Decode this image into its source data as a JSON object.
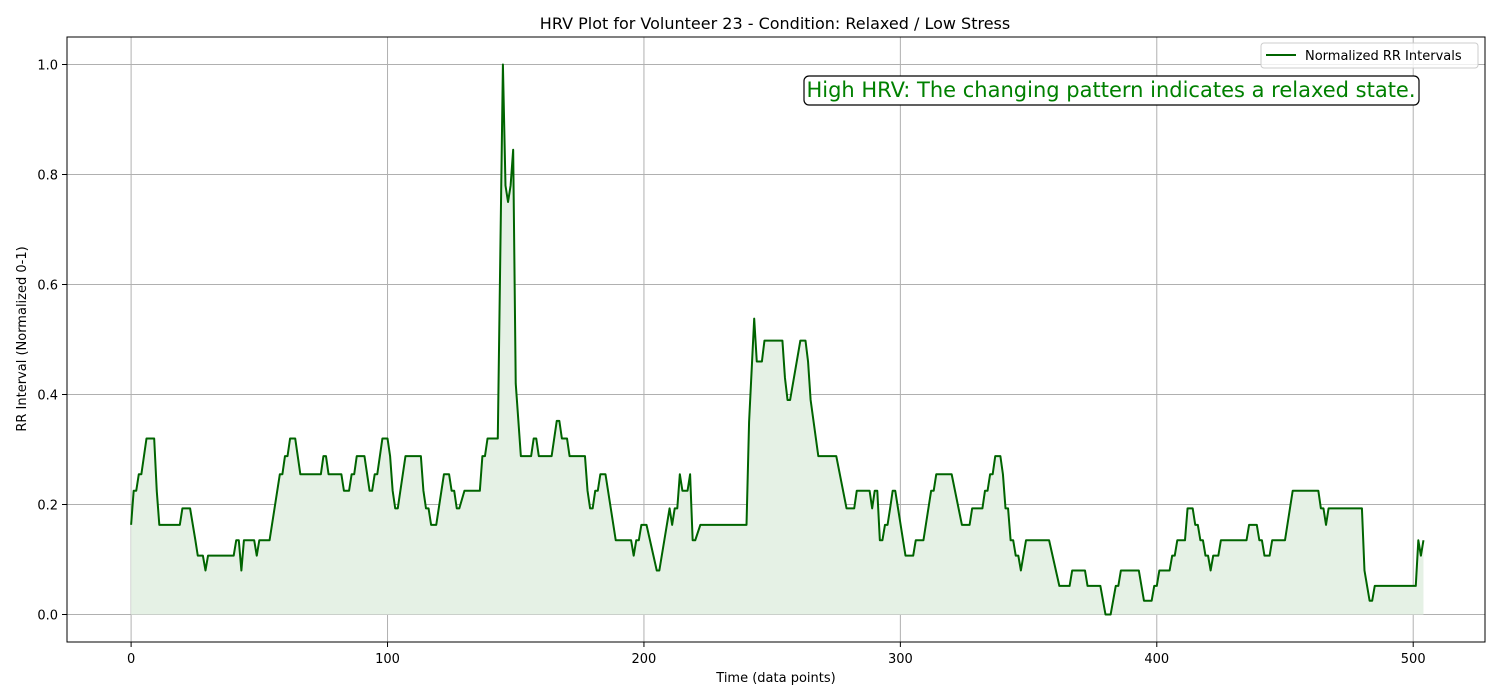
{
  "chart_data": {
    "type": "line",
    "title": "HRV Plot for Volunteer 23 - Condition: Relaxed / Low Stress",
    "xlabel": "Time (data points)",
    "ylabel": "RR Interval (Normalized 0-1)",
    "xlim": [
      -25,
      528
    ],
    "ylim": [
      -0.05,
      1.05
    ],
    "xticks": [
      0,
      100,
      200,
      300,
      400,
      500
    ],
    "yticks": [
      0.0,
      0.2,
      0.4,
      0.6,
      0.8,
      1.0
    ],
    "xtick_labels": [
      "0",
      "100",
      "200",
      "300",
      "400",
      "500"
    ],
    "ytick_labels": [
      "0.0",
      "0.2",
      "0.4",
      "0.6",
      "0.8",
      "1.0"
    ],
    "grid": true,
    "legend_position": "top-right",
    "line_color": "#006400",
    "fill_color": "#e5f1e5",
    "series": [
      {
        "name": "Normalized RR Intervals",
        "points": [
          [
            0,
            0.163
          ],
          [
            1,
            0.225
          ],
          [
            2,
            0.225
          ],
          [
            3,
            0.255
          ],
          [
            4,
            0.255
          ],
          [
            6,
            0.32
          ],
          [
            9,
            0.32
          ],
          [
            10,
            0.225
          ],
          [
            11,
            0.163
          ],
          [
            19,
            0.163
          ],
          [
            20,
            0.193
          ],
          [
            23,
            0.193
          ],
          [
            25,
            0.137
          ],
          [
            26,
            0.107
          ],
          [
            28,
            0.107
          ],
          [
            29,
            0.08
          ],
          [
            30,
            0.107
          ],
          [
            40,
            0.107
          ],
          [
            41,
            0.135
          ],
          [
            42,
            0.135
          ],
          [
            43,
            0.08
          ],
          [
            44,
            0.135
          ],
          [
            48,
            0.135
          ],
          [
            49,
            0.107
          ],
          [
            50,
            0.135
          ],
          [
            54,
            0.135
          ],
          [
            58,
            0.255
          ],
          [
            59,
            0.255
          ],
          [
            60,
            0.288
          ],
          [
            61,
            0.288
          ],
          [
            62,
            0.32
          ],
          [
            64,
            0.32
          ],
          [
            66,
            0.255
          ],
          [
            74,
            0.255
          ],
          [
            75,
            0.288
          ],
          [
            76,
            0.288
          ],
          [
            77,
            0.255
          ],
          [
            82,
            0.255
          ],
          [
            83,
            0.225
          ],
          [
            85,
            0.225
          ],
          [
            86,
            0.255
          ],
          [
            87,
            0.255
          ],
          [
            88,
            0.288
          ],
          [
            91,
            0.288
          ],
          [
            93,
            0.225
          ],
          [
            94,
            0.225
          ],
          [
            95,
            0.255
          ],
          [
            96,
            0.255
          ],
          [
            98,
            0.32
          ],
          [
            100,
            0.32
          ],
          [
            101,
            0.288
          ],
          [
            102,
            0.225
          ],
          [
            103,
            0.193
          ],
          [
            104,
            0.193
          ],
          [
            107,
            0.288
          ],
          [
            113,
            0.288
          ],
          [
            114,
            0.225
          ],
          [
            115,
            0.193
          ],
          [
            116,
            0.193
          ],
          [
            117,
            0.163
          ],
          [
            119,
            0.163
          ],
          [
            122,
            0.255
          ],
          [
            124,
            0.255
          ],
          [
            125,
            0.225
          ],
          [
            126,
            0.225
          ],
          [
            127,
            0.193
          ],
          [
            128,
            0.193
          ],
          [
            130,
            0.225
          ],
          [
            136,
            0.225
          ],
          [
            137,
            0.288
          ],
          [
            138,
            0.288
          ],
          [
            139,
            0.32
          ],
          [
            143,
            0.32
          ],
          [
            145,
            1.0
          ],
          [
            146,
            0.78
          ],
          [
            147,
            0.75
          ],
          [
            148,
            0.78
          ],
          [
            149,
            0.845
          ],
          [
            150,
            0.42
          ],
          [
            152,
            0.288
          ],
          [
            156,
            0.288
          ],
          [
            157,
            0.32
          ],
          [
            158,
            0.32
          ],
          [
            159,
            0.288
          ],
          [
            164,
            0.288
          ],
          [
            166,
            0.352
          ],
          [
            167,
            0.352
          ],
          [
            168,
            0.32
          ],
          [
            170,
            0.32
          ],
          [
            171,
            0.288
          ],
          [
            177,
            0.288
          ],
          [
            178,
            0.225
          ],
          [
            179,
            0.193
          ],
          [
            180,
            0.193
          ],
          [
            181,
            0.225
          ],
          [
            182,
            0.225
          ],
          [
            183,
            0.255
          ],
          [
            185,
            0.255
          ],
          [
            189,
            0.135
          ],
          [
            195,
            0.135
          ],
          [
            196,
            0.107
          ],
          [
            197,
            0.135
          ],
          [
            198,
            0.135
          ],
          [
            199,
            0.163
          ],
          [
            201,
            0.163
          ],
          [
            205,
            0.08
          ],
          [
            206,
            0.08
          ],
          [
            210,
            0.193
          ],
          [
            211,
            0.163
          ],
          [
            212,
            0.193
          ],
          [
            213,
            0.193
          ],
          [
            214,
            0.255
          ],
          [
            215,
            0.225
          ],
          [
            217,
            0.225
          ],
          [
            218,
            0.255
          ],
          [
            219,
            0.135
          ],
          [
            220,
            0.135
          ],
          [
            222,
            0.163
          ],
          [
            240,
            0.163
          ],
          [
            241,
            0.35
          ],
          [
            243,
            0.538
          ],
          [
            244,
            0.46
          ],
          [
            246,
            0.46
          ],
          [
            247,
            0.498
          ],
          [
            254,
            0.498
          ],
          [
            255,
            0.43
          ],
          [
            256,
            0.39
          ],
          [
            257,
            0.39
          ],
          [
            261,
            0.498
          ],
          [
            263,
            0.498
          ],
          [
            264,
            0.46
          ],
          [
            265,
            0.39
          ],
          [
            268,
            0.288
          ],
          [
            275,
            0.288
          ],
          [
            279,
            0.193
          ],
          [
            282,
            0.193
          ],
          [
            283,
            0.225
          ],
          [
            288,
            0.225
          ],
          [
            289,
            0.193
          ],
          [
            290,
            0.225
          ],
          [
            291,
            0.225
          ],
          [
            292,
            0.135
          ],
          [
            293,
            0.135
          ],
          [
            294,
            0.163
          ],
          [
            295,
            0.163
          ],
          [
            296,
            0.193
          ],
          [
            297,
            0.225
          ],
          [
            298,
            0.225
          ],
          [
            302,
            0.107
          ],
          [
            305,
            0.107
          ],
          [
            306,
            0.135
          ],
          [
            309,
            0.135
          ],
          [
            312,
            0.225
          ],
          [
            313,
            0.225
          ],
          [
            314,
            0.255
          ],
          [
            320,
            0.255
          ],
          [
            324,
            0.163
          ],
          [
            327,
            0.163
          ],
          [
            328,
            0.193
          ],
          [
            332,
            0.193
          ],
          [
            333,
            0.225
          ],
          [
            334,
            0.225
          ],
          [
            335,
            0.255
          ],
          [
            336,
            0.255
          ],
          [
            337,
            0.288
          ],
          [
            339,
            0.288
          ],
          [
            340,
            0.255
          ],
          [
            341,
            0.193
          ],
          [
            342,
            0.193
          ],
          [
            343,
            0.135
          ],
          [
            344,
            0.135
          ],
          [
            345,
            0.107
          ],
          [
            346,
            0.107
          ],
          [
            347,
            0.08
          ],
          [
            349,
            0.135
          ],
          [
            358,
            0.135
          ],
          [
            362,
            0.052
          ],
          [
            366,
            0.052
          ],
          [
            367,
            0.08
          ],
          [
            372,
            0.08
          ],
          [
            373,
            0.052
          ],
          [
            378,
            0.052
          ],
          [
            380,
            0.0
          ],
          [
            382,
            0.0
          ],
          [
            384,
            0.052
          ],
          [
            385,
            0.052
          ],
          [
            386,
            0.08
          ],
          [
            393,
            0.08
          ],
          [
            395,
            0.025
          ],
          [
            398,
            0.025
          ],
          [
            399,
            0.052
          ],
          [
            400,
            0.052
          ],
          [
            401,
            0.08
          ],
          [
            405,
            0.08
          ],
          [
            406,
            0.107
          ],
          [
            407,
            0.107
          ],
          [
            408,
            0.135
          ],
          [
            411,
            0.135
          ],
          [
            412,
            0.193
          ],
          [
            414,
            0.193
          ],
          [
            415,
            0.163
          ],
          [
            416,
            0.163
          ],
          [
            417,
            0.135
          ],
          [
            418,
            0.135
          ],
          [
            419,
            0.107
          ],
          [
            420,
            0.107
          ],
          [
            421,
            0.08
          ],
          [
            422,
            0.107
          ],
          [
            424,
            0.107
          ],
          [
            425,
            0.135
          ],
          [
            435,
            0.135
          ],
          [
            436,
            0.163
          ],
          [
            439,
            0.163
          ],
          [
            440,
            0.135
          ],
          [
            441,
            0.135
          ],
          [
            442,
            0.107
          ],
          [
            444,
            0.107
          ],
          [
            445,
            0.135
          ],
          [
            450,
            0.135
          ],
          [
            453,
            0.225
          ],
          [
            463,
            0.225
          ],
          [
            464,
            0.193
          ],
          [
            465,
            0.193
          ],
          [
            466,
            0.163
          ],
          [
            467,
            0.193
          ],
          [
            480,
            0.193
          ],
          [
            481,
            0.08
          ],
          [
            483,
            0.025
          ],
          [
            484,
            0.025
          ],
          [
            485,
            0.052
          ],
          [
            501,
            0.052
          ],
          [
            502,
            0.135
          ],
          [
            503,
            0.107
          ],
          [
            504,
            0.135
          ]
        ]
      }
    ],
    "annotation": {
      "text": "High HRV: The changing pattern indicates a relaxed state.",
      "color": "#008000"
    }
  }
}
